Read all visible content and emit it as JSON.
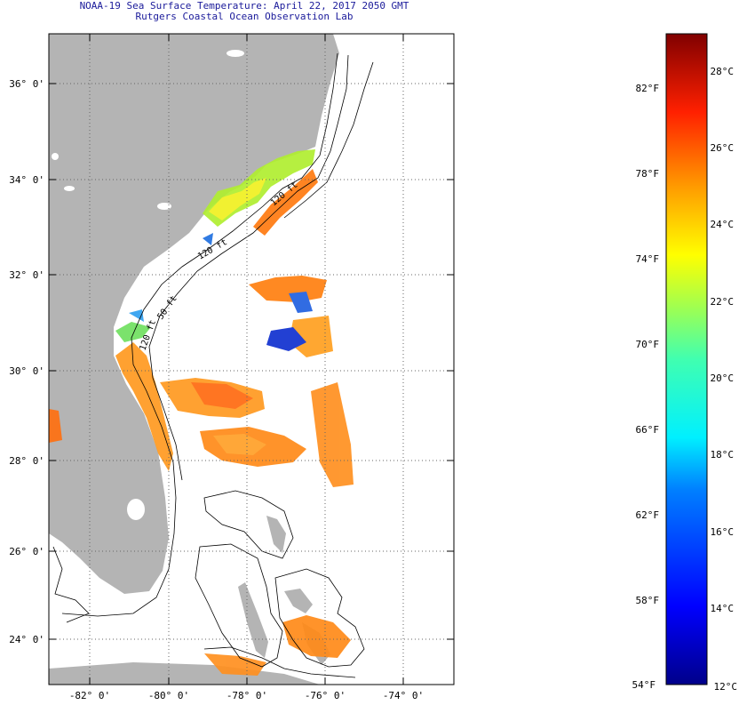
{
  "title": "NOAA-19 Sea Surface Temperature:  April 22, 2017 2050 GMT",
  "subtitle": "Rutgers Coastal Ocean Observation Lab",
  "map": {
    "lat_labels": [
      "36° 0'",
      "34° 0'",
      "32° 0'",
      "30° 0'",
      "28° 0'",
      "26° 0'",
      "24° 0'"
    ],
    "lon_labels": [
      "-82° 0'",
      "-80° 0'",
      "-78° 0'",
      "-76° 0'",
      "-74° 0'"
    ],
    "isobath_labels": [
      "120 ft",
      "120 ft",
      "120 ft",
      "50 ft"
    ],
    "colors": {
      "land": "#b4b4b4",
      "grid": "#666666",
      "contour": "#000000"
    }
  },
  "colorbar": {
    "f_labels": [
      "82°F",
      "78°F",
      "74°F",
      "70°F",
      "66°F",
      "62°F",
      "58°F",
      "54°F"
    ],
    "c_labels": [
      "28°C",
      "26°C",
      "24°C",
      "22°C",
      "20°C",
      "18°C",
      "16°C",
      "14°C",
      "12°C"
    ]
  }
}
